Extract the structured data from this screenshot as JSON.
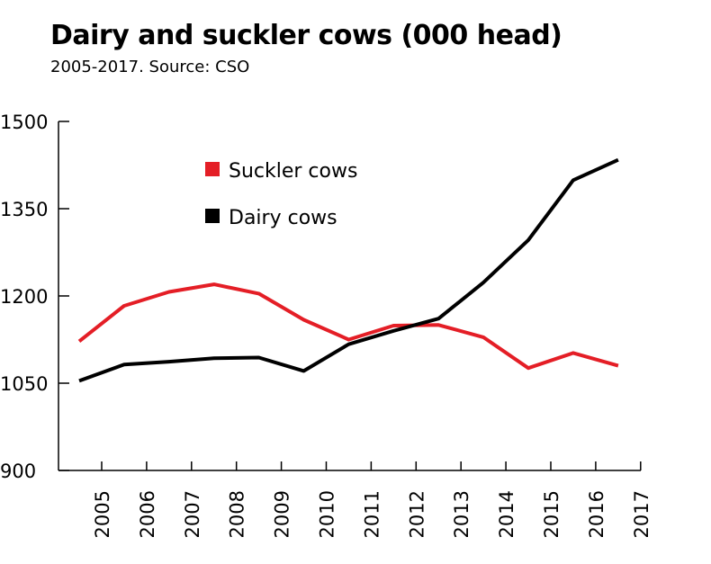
{
  "chart_data": {
    "type": "line",
    "title": "Dairy and suckler cows (000 head)",
    "subtitle": "2005-2017. Source: CSO",
    "xlabel": "",
    "ylabel": "",
    "categories": [
      "2005",
      "2006",
      "2007",
      "2008",
      "2009",
      "2010",
      "2011",
      "2012",
      "2013",
      "2014",
      "2015",
      "2016",
      "2017"
    ],
    "x": [
      2004.5,
      2005.5,
      2006.5,
      2007.5,
      2008.5,
      2009.5,
      2010.5,
      2011.5,
      2012.5,
      2013.5,
      2014.5,
      2015.5,
      2016.5
    ],
    "ylim": [
      900,
      1500
    ],
    "yticks": [
      "900",
      "1050",
      "1200",
      "1350",
      "1500"
    ],
    "legend_position": "top-left inside plot",
    "series": [
      {
        "name": "Suckler cows",
        "color": "#e41e26",
        "values": [
          1122,
          1183,
          1207,
          1220,
          1204,
          1159,
          1125,
          1149,
          1150,
          1129,
          1076,
          1102,
          1080
        ]
      },
      {
        "name": "Dairy cows",
        "color": "#000000",
        "values": [
          1054,
          1082,
          1087,
          1093,
          1094,
          1071,
          1117,
          1140,
          1161,
          1223,
          1296,
          1399,
          1434
        ]
      }
    ]
  }
}
